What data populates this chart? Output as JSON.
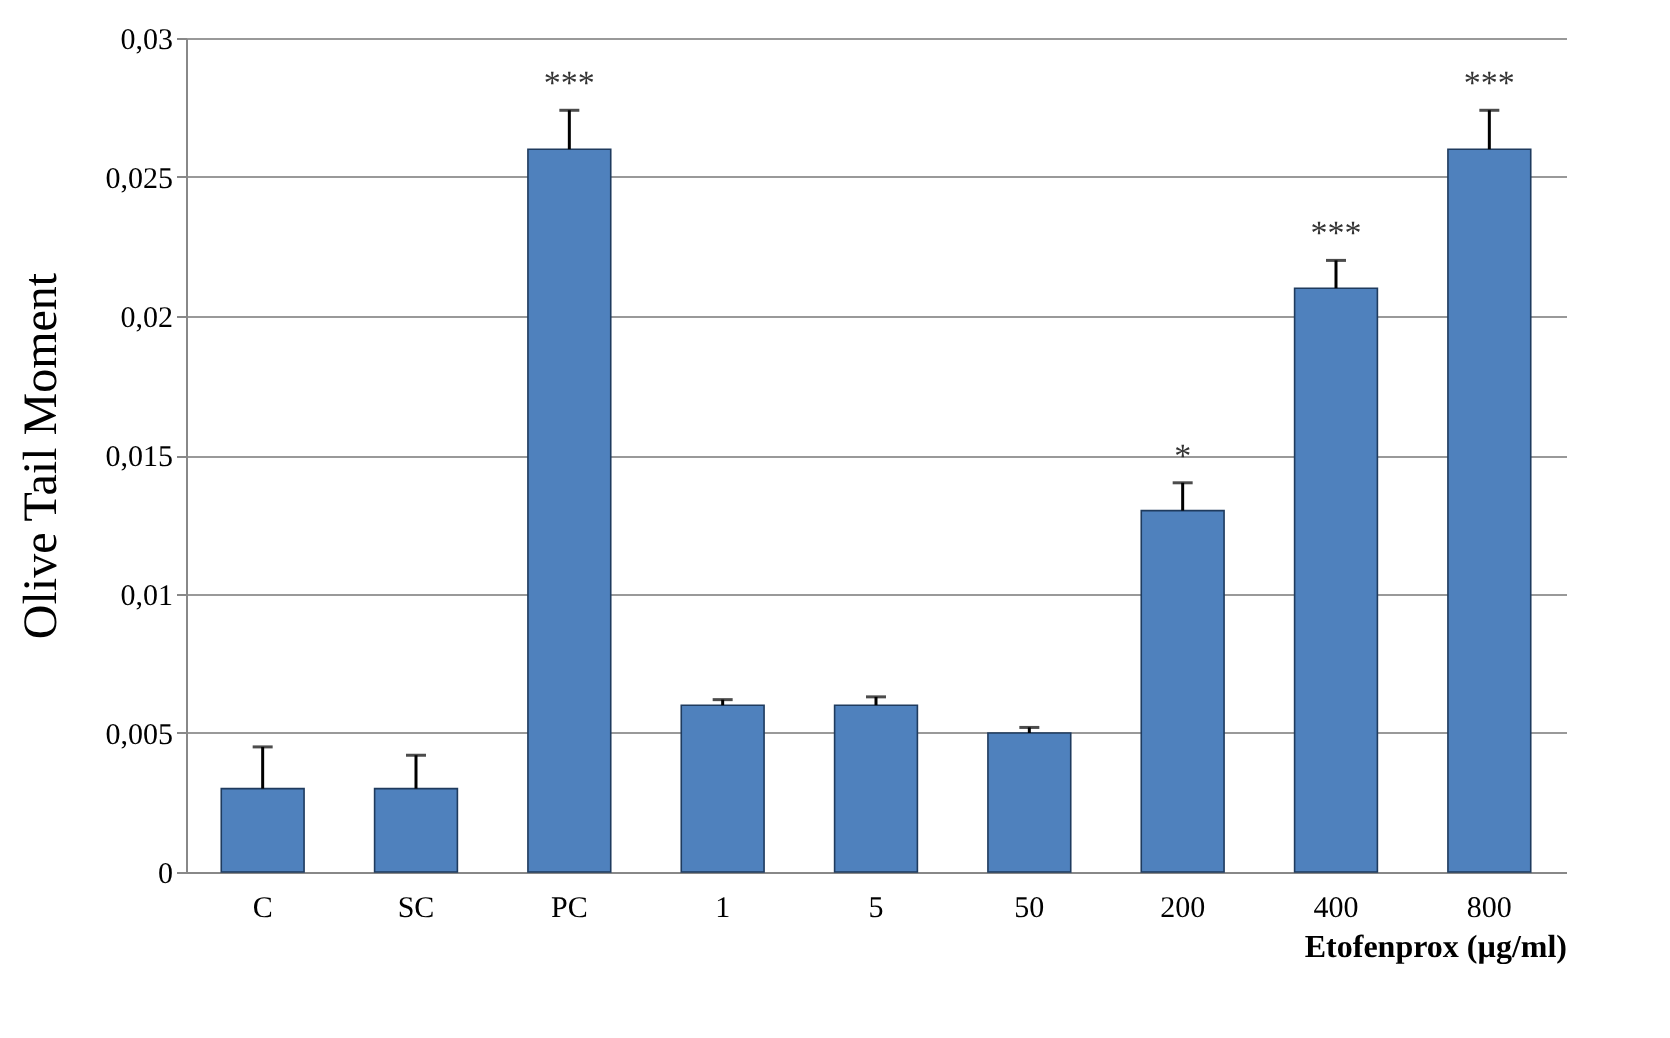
{
  "chart_data": {
    "type": "bar",
    "xlabel": "Etofenprox (µg/ml)",
    "ylabel": "Olive Tail Moment",
    "categories": [
      "C",
      "SC",
      "PC",
      "1",
      "5",
      "50",
      "200",
      "400",
      "800"
    ],
    "values": [
      0.003,
      0.003,
      0.026,
      0.006,
      0.006,
      0.005,
      0.013,
      0.021,
      0.026
    ],
    "errors": [
      [
        0.003,
        0.0045
      ],
      [
        0.003,
        0.0042
      ],
      [
        0.026,
        0.0274
      ],
      [
        0.006,
        0.0062
      ],
      [
        0.006,
        0.0063
      ],
      [
        0.005,
        0.0052
      ],
      [
        0.013,
        0.014
      ],
      [
        0.021,
        0.022
      ],
      [
        0.026,
        0.0274
      ]
    ],
    "color": "#4f81bd",
    "ylim": [
      0,
      0.03
    ],
    "yticks": [
      0,
      {
        "value": 0.005,
        "label": "0,005"
      },
      {
        "value": 0.01,
        "label": "0,01"
      },
      {
        "value": 0.015,
        "label": "0,015"
      },
      {
        "value": 0.02,
        "label": "0,02"
      },
      {
        "value": 0.025,
        "label": "0,025"
      },
      {
        "value": 0.03,
        "label": "0,03"
      }
    ],
    "grid": "y",
    "annotations": [
      {
        "text": "***",
        "x": "PC",
        "y": 0.0274
      },
      {
        "text": "*",
        "x": "200",
        "y": 0.014
      },
      {
        "text": "***",
        "x": "400",
        "y": 0.022
      },
      {
        "text": "***",
        "x": "800",
        "y": 0.0274
      }
    ]
  }
}
